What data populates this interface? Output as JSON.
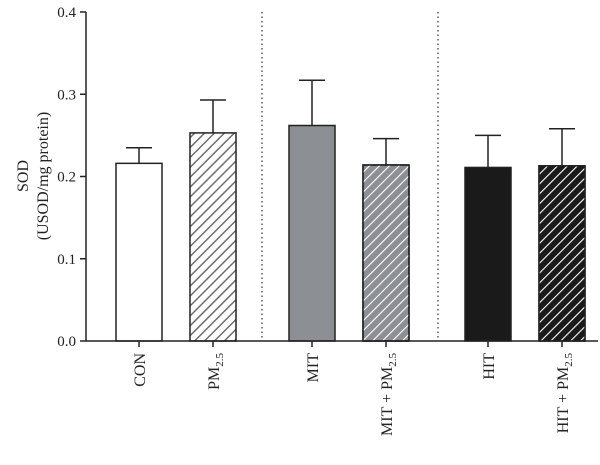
{
  "chart_data": {
    "type": "bar",
    "ylabel_line1": "SOD",
    "ylabel_line2": "(USOD/mg protein)",
    "ylim": [
      0,
      0.4
    ],
    "yticks": [
      "0.0",
      "0.1",
      "0.2",
      "0.3",
      "0.4"
    ],
    "categories": [
      {
        "label": "CON",
        "sub": "",
        "suffix": ""
      },
      {
        "label": "PM",
        "sub": "2.5",
        "suffix": ""
      },
      {
        "label": "MIT",
        "sub": "",
        "suffix": ""
      },
      {
        "label": "MIT + PM",
        "sub": "2.5",
        "suffix": ""
      },
      {
        "label": "HIT",
        "sub": "",
        "suffix": ""
      },
      {
        "label": "HIT + PM",
        "sub": "2.5",
        "suffix": ""
      }
    ],
    "values": [
      0.216,
      0.253,
      0.262,
      0.214,
      0.211,
      0.213
    ],
    "errors": [
      0.019,
      0.04,
      0.055,
      0.032,
      0.039,
      0.045
    ],
    "fills": [
      {
        "fill": "#ffffff",
        "pattern": "none"
      },
      {
        "fill": "#ffffff",
        "pattern": "hatch-gray-right"
      },
      {
        "fill": "#8c8f94",
        "pattern": "none"
      },
      {
        "fill": "#8c8f94",
        "pattern": "hatch-white-left"
      },
      {
        "fill": "#1a1a1a",
        "pattern": "none"
      },
      {
        "fill": "#1a1a1a",
        "pattern": "hatch-white-left"
      }
    ],
    "group_separators": "dotted vertical lines between CON/PM2.5, MIT/MIT+PM2.5 and HIT/HIT+PM2.5 groups",
    "grid": false,
    "legend": "none"
  }
}
